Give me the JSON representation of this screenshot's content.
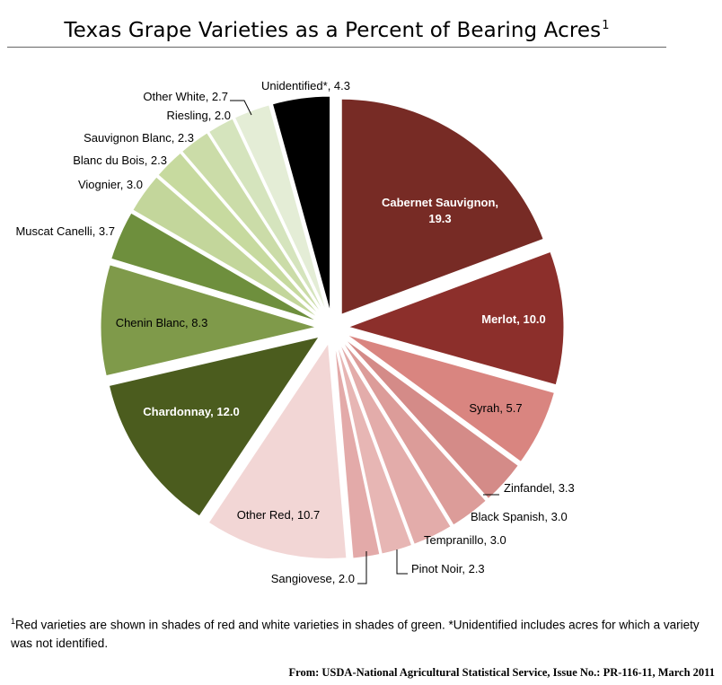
{
  "title": "Texas Grape Varieties as a Percent of Bearing Acres",
  "title_footnote_mark": "1",
  "footnote": {
    "mark": "1",
    "text": "Red varieties are shown in shades of red and white varieties in shades of green.  *Unidentified  includes acres for which a variety was not identified."
  },
  "source": "From: USDA-National Agricultural Statistical Service, Issue No.: PR-116-11, March 2011",
  "chart_data": {
    "type": "pie",
    "exploded": true,
    "start_angle_deg": 0,
    "direction": "clockwise",
    "slices": [
      {
        "label": "Cabernet Sauvignon",
        "value": 19.3,
        "color": "#772b25",
        "label_text": "Cabernet Sauvignon, 19.3"
      },
      {
        "label": "Merlot",
        "value": 10.0,
        "color": "#8c2f2b",
        "label_text": "Merlot, 10.0"
      },
      {
        "label": "Syrah",
        "value": 5.7,
        "color": "#d98580",
        "label_text": "Syrah, 5.7"
      },
      {
        "label": "Zinfandel",
        "value": 3.3,
        "color": "#d48b88",
        "label_text": "Zinfandel, 3.3"
      },
      {
        "label": "Black Spanish",
        "value": 3.0,
        "color": "#dc9c99",
        "label_text": "Black Spanish,  3.0"
      },
      {
        "label": "Tempranillo",
        "value": 3.0,
        "color": "#e3acaa",
        "label_text": "Tempranillo, 3.0"
      },
      {
        "label": "Pinot Noir",
        "value": 2.3,
        "color": "#e7b6b4",
        "label_text": "Pinot Noir, 2.3"
      },
      {
        "label": "Sangiovese",
        "value": 2.0,
        "color": "#e3aaa9",
        "label_text": "Sangiovese, 2.0"
      },
      {
        "label": "Other Red",
        "value": 10.7,
        "color": "#f2d6d5",
        "label_text": "Other Red, 10.7"
      },
      {
        "label": "Chardonnay",
        "value": 12.0,
        "color": "#4b5c1e",
        "label_text": "Chardonnay, 12.0"
      },
      {
        "label": "Chenin Blanc",
        "value": 8.3,
        "color": "#7f9a4a",
        "label_text": "Chenin Blanc, 8.3"
      },
      {
        "label": "Muscat Canelli",
        "value": 3.7,
        "color": "#6e8f3d",
        "label_text": "Muscat Canelli, 3.7"
      },
      {
        "label": "Viognier",
        "value": 3.0,
        "color": "#c3d69b",
        "label_text": "Viognier, 3.0"
      },
      {
        "label": "Blanc du Bois",
        "value": 2.3,
        "color": "#c7da9f",
        "label_text": "Blanc du Bois, 2.3"
      },
      {
        "label": "Sauvignon Blanc",
        "value": 2.3,
        "color": "#cbdca8",
        "label_text": "Sauvignon Blanc, 2.3"
      },
      {
        "label": "Riesling",
        "value": 2.0,
        "color": "#d5e4bd",
        "label_text": "Riesling, 2.0"
      },
      {
        "label": "Other White",
        "value": 2.7,
        "color": "#e4edd6",
        "label_text": "Other White, 2.7"
      },
      {
        "label": "Unidentified*",
        "value": 4.3,
        "color": "#000000",
        "label_text": "Unidentified*, 4.3"
      }
    ]
  }
}
